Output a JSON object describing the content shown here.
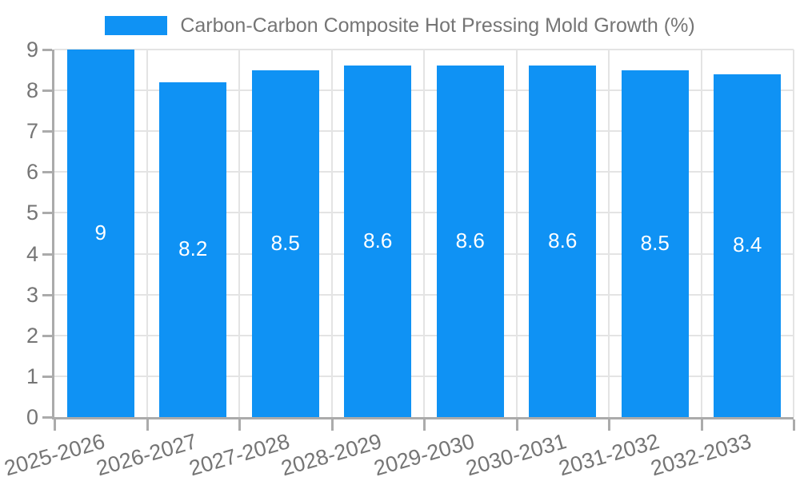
{
  "legend": {
    "series_label": "Carbon-Carbon Composite Hot Pressing Mold Growth (%)"
  },
  "chart_data": {
    "type": "bar",
    "title": "Carbon-Carbon Composite Hot Pressing Mold Growth (%)",
    "legend_position": "top",
    "categories": [
      "2025-2026",
      "2026-2027",
      "2027-2028",
      "2028-2029",
      "2029-2030",
      "2030-2031",
      "2031-2032",
      "2032-2033"
    ],
    "series": [
      {
        "name": "Carbon-Carbon Composite Hot Pressing Mold Growth (%)",
        "values": [
          9,
          8.2,
          8.5,
          8.6,
          8.6,
          8.6,
          8.5,
          8.4
        ],
        "bar_labels": [
          "9",
          "8.2",
          "8.5",
          "8.6",
          "8.6",
          "8.6",
          "8.5",
          "8.4"
        ]
      }
    ],
    "xlabel": "",
    "ylabel": "",
    "ylim": [
      0,
      9
    ],
    "yticks": [
      0,
      1,
      2,
      3,
      4,
      5,
      6,
      7,
      8,
      9
    ],
    "grid": true,
    "colors": {
      "bar": "#0f92f4",
      "grid": "#e4e4e4",
      "axis": "#ababab",
      "tick_text": "#757575",
      "bar_label_text": "#ffffff",
      "background": "#ffffff"
    }
  }
}
